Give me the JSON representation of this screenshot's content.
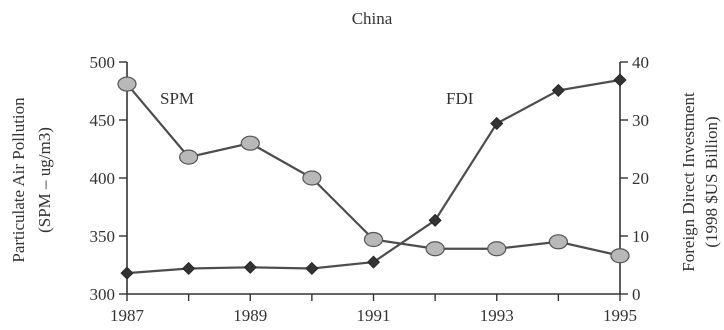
{
  "chart_data": {
    "type": "line",
    "title": "China",
    "x": [
      1987,
      1988,
      1989,
      1990,
      1991,
      1992,
      1993,
      1994,
      1995
    ],
    "x_ticks": [
      "1987",
      "1989",
      "1991",
      "1993",
      "1995"
    ],
    "xlim": [
      1987,
      1995
    ],
    "y_left": {
      "label_line1": "Particulate Air Pollution",
      "label_line2": "(SPM – ug/m3)",
      "lim": [
        300,
        500
      ],
      "ticks": [
        "300",
        "350",
        "400",
        "450",
        "500"
      ]
    },
    "y_right": {
      "label_line1": "Foreign Direct Investment",
      "label_line2": "(1998 $US Billion)",
      "lim": [
        0,
        40
      ],
      "ticks": [
        "0",
        "10",
        "20",
        "30",
        "40"
      ]
    },
    "series": [
      {
        "name": "SPM",
        "axis": "left",
        "marker": "circle",
        "values": [
          481,
          418,
          430,
          400,
          347,
          339,
          339,
          345,
          333
        ]
      },
      {
        "name": "FDI",
        "axis": "right",
        "marker": "diamond",
        "values": [
          3.6,
          4.4,
          4.6,
          4.4,
          5.5,
          12.7,
          29.4,
          35.1,
          36.9
        ]
      }
    ],
    "grid": false,
    "legend": "inline"
  }
}
